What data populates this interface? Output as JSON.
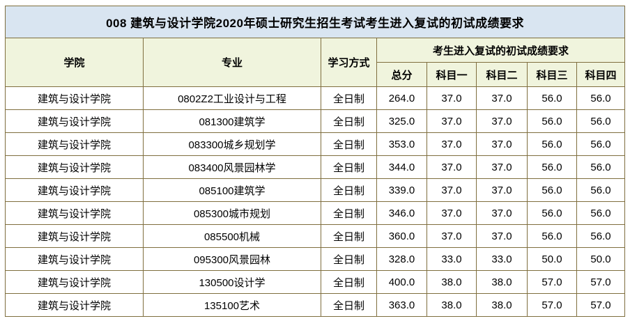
{
  "page": {
    "title": "008 建筑与设计学院2020年硕士研究生招生考试考生进入复试的初试成绩要求"
  },
  "colors": {
    "title_bg": "#d9e5f1",
    "header_bg": "#f0f4dd",
    "border": "#7f6e3e",
    "text": "#000000",
    "row_bg": "#ffffff"
  },
  "table": {
    "headers": {
      "college": "学院",
      "major": "专业",
      "study_mode": "学习方式",
      "score_group": "考生进入复试的初试成绩要求",
      "total": "总分",
      "subject1": "科目一",
      "subject2": "科目二",
      "subject3": "科目三",
      "subject4": "科目四"
    },
    "col_names": [
      "college",
      "major",
      "study-mode",
      "total-score",
      "subject1-score",
      "subject2-score",
      "subject3-score",
      "subject4-score"
    ],
    "rows": [
      [
        "建筑与设计学院",
        "0802Z2工业设计与工程",
        "全日制",
        "264.0",
        "37.0",
        "37.0",
        "56.0",
        "56.0"
      ],
      [
        "建筑与设计学院",
        "081300建筑学",
        "全日制",
        "325.0",
        "37.0",
        "37.0",
        "56.0",
        "56.0"
      ],
      [
        "建筑与设计学院",
        "083300城乡规划学",
        "全日制",
        "353.0",
        "37.0",
        "37.0",
        "56.0",
        "56.0"
      ],
      [
        "建筑与设计学院",
        "083400风景园林学",
        "全日制",
        "344.0",
        "37.0",
        "37.0",
        "56.0",
        "56.0"
      ],
      [
        "建筑与设计学院",
        "085100建筑学",
        "全日制",
        "339.0",
        "37.0",
        "37.0",
        "56.0",
        "56.0"
      ],
      [
        "建筑与设计学院",
        "085300城市规划",
        "全日制",
        "346.0",
        "37.0",
        "37.0",
        "56.0",
        "56.0"
      ],
      [
        "建筑与设计学院",
        "085500机械",
        "全日制",
        "360.0",
        "37.0",
        "37.0",
        "56.0",
        "56.0"
      ],
      [
        "建筑与设计学院",
        "095300风景园林",
        "全日制",
        "328.0",
        "33.0",
        "33.0",
        "50.0",
        "50.0"
      ],
      [
        "建筑与设计学院",
        "130500设计学",
        "全日制",
        "400.0",
        "38.0",
        "38.0",
        "57.0",
        "57.0"
      ],
      [
        "建筑与设计学院",
        "135100艺术",
        "全日制",
        "363.0",
        "38.0",
        "38.0",
        "57.0",
        "57.0"
      ]
    ]
  }
}
